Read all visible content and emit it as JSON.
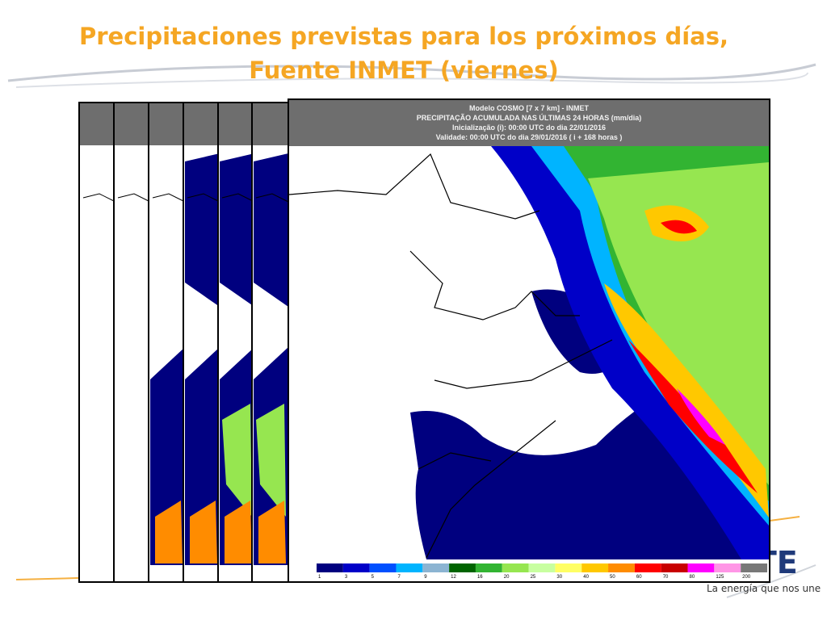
{
  "slide": {
    "title_line1": "Precipitaciones previstas para los próximos días,",
    "title_line2": "Fuente INMET (viernes)",
    "map": {
      "header": [
        "Modelo COSMO [7 x 7 km] - INMET",
        "PRECIPITAÇÃO ACUMULADA NAS ÚLTIMAS 24 HORAS (mm/dia)",
        "Inicialização (i): 00:00 UTC do dia 22/01/2016",
        "Validade: 00:00 UTC do dia 29/01/2016 ( i + 168 horas )"
      ],
      "colorbar": {
        "labels": [
          1,
          3,
          5,
          7,
          9,
          12,
          16,
          20,
          25,
          30,
          40,
          50,
          60,
          70,
          80,
          125,
          200
        ],
        "colors": [
          "#00007f",
          "#0000c8",
          "#0050ff",
          "#00b4ff",
          "#8cb4d2",
          "#006400",
          "#32b432",
          "#96e650",
          "#c8ffa0",
          "#ffff64",
          "#ffc800",
          "#ff8c00",
          "#ff0000",
          "#c80000",
          "#ff00ff",
          "#ff96e6",
          "#787878"
        ]
      }
    },
    "logo": "UTE",
    "slogan": "La energía que nos une"
  }
}
